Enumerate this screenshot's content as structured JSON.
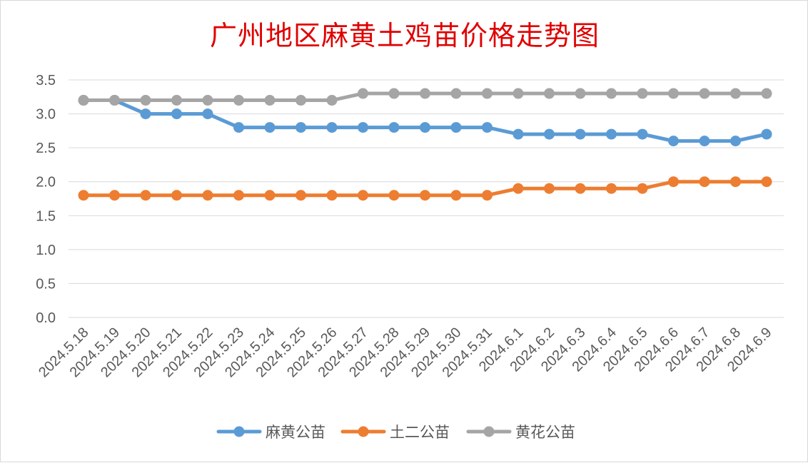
{
  "chart_data": {
    "type": "line",
    "title": "广州地区麻黄土鸡苗价格走势图",
    "xlabel": "",
    "ylabel": "",
    "ylim": [
      0,
      3.5
    ],
    "yticks": [
      "0.0",
      "0.5",
      "1.0",
      "1.5",
      "2.0",
      "2.5",
      "3.0",
      "3.5"
    ],
    "grid": true,
    "legend_position": "bottom",
    "categories": [
      "2024.5.18",
      "2024.5.19",
      "2024.5.20",
      "2024.5.21",
      "2024.5.22",
      "2024.5.23",
      "2024.5.24",
      "2024.5.25",
      "2024.5.26",
      "2024.5.27",
      "2024.5.28",
      "2024.5.29",
      "2024.5.30",
      "2024.5.31",
      "2024.6.1",
      "2024.6.2",
      "2024.6.3",
      "2024.6.4",
      "2024.6.5",
      "2024.6.6",
      "2024.6.7",
      "2024.6.8",
      "2024.6.9"
    ],
    "series": [
      {
        "name": "麻黄公苗",
        "color": "#5b9bd5",
        "values": [
          3.2,
          3.2,
          3.0,
          3.0,
          3.0,
          2.8,
          2.8,
          2.8,
          2.8,
          2.8,
          2.8,
          2.8,
          2.8,
          2.8,
          2.7,
          2.7,
          2.7,
          2.7,
          2.7,
          2.6,
          2.6,
          2.6,
          2.7
        ]
      },
      {
        "name": "土二公苗",
        "color": "#ed7d31",
        "values": [
          1.8,
          1.8,
          1.8,
          1.8,
          1.8,
          1.8,
          1.8,
          1.8,
          1.8,
          1.8,
          1.8,
          1.8,
          1.8,
          1.8,
          1.9,
          1.9,
          1.9,
          1.9,
          1.9,
          2.0,
          2.0,
          2.0,
          2.0
        ]
      },
      {
        "name": "黄花公苗",
        "color": "#a5a5a5",
        "values": [
          3.2,
          3.2,
          3.2,
          3.2,
          3.2,
          3.2,
          3.2,
          3.2,
          3.2,
          3.3,
          3.3,
          3.3,
          3.3,
          3.3,
          3.3,
          3.3,
          3.3,
          3.3,
          3.3,
          3.3,
          3.3,
          3.3,
          3.3
        ]
      }
    ]
  }
}
